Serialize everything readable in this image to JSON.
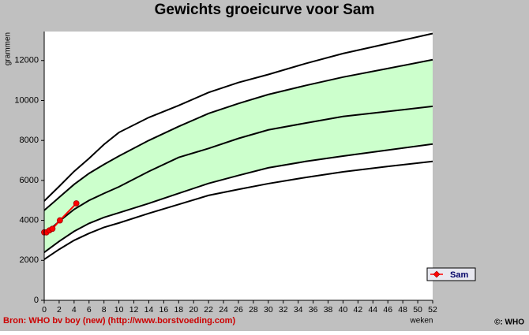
{
  "chart_data": {
    "type": "line",
    "title": "Gewichts groeicurve voor Sam",
    "y_label": "grammen",
    "x_label": "weken",
    "source": "Bron: WHO bv boy (new) (http://www.borstvoeding.com)",
    "copyright": "©: WHO",
    "xlim": [
      0,
      52
    ],
    "ylim": [
      0,
      13450
    ],
    "xticks": [
      0,
      2,
      4,
      6,
      8,
      10,
      12,
      14,
      16,
      18,
      20,
      22,
      24,
      26,
      28,
      30,
      32,
      34,
      36,
      38,
      40,
      42,
      44,
      46,
      48,
      50,
      52
    ],
    "yticks": [
      0,
      2000,
      4000,
      6000,
      8000,
      10000,
      12000
    ],
    "band_color": "#ccffcc",
    "curve_color": "#000000",
    "x": [
      0,
      2,
      4,
      6,
      8,
      10,
      14,
      18,
      22,
      26,
      30,
      35,
      40,
      46,
      52
    ],
    "reference_curves": [
      {
        "values": [
          4970,
          5700,
          6450,
          7100,
          7800,
          8400,
          9150,
          9750,
          10400,
          10900,
          11300,
          11850,
          12350,
          12850,
          13350
        ]
      },
      {
        "values": [
          4500,
          5150,
          5800,
          6350,
          6800,
          7220,
          8000,
          8700,
          9350,
          9850,
          10300,
          10750,
          11170,
          11600,
          12040
        ]
      },
      {
        "values": [
          3300,
          3950,
          4550,
          5000,
          5350,
          5680,
          6450,
          7150,
          7600,
          8100,
          8530,
          8870,
          9200,
          9450,
          9710
        ]
      },
      {
        "values": [
          2400,
          2950,
          3450,
          3850,
          4150,
          4380,
          4850,
          5350,
          5850,
          6250,
          6630,
          6950,
          7220,
          7520,
          7820
        ]
      },
      {
        "values": [
          2050,
          2550,
          3000,
          3350,
          3650,
          3870,
          4350,
          4800,
          5250,
          5550,
          5840,
          6150,
          6430,
          6700,
          6950
        ]
      }
    ],
    "series": [
      {
        "name": "Sam",
        "color": "#ff0000",
        "x": [
          0,
          0.3,
          0.7,
          1.1,
          2.1,
          4.3
        ],
        "values": [
          3400,
          3400,
          3500,
          3580,
          4000,
          4850
        ]
      }
    ]
  }
}
